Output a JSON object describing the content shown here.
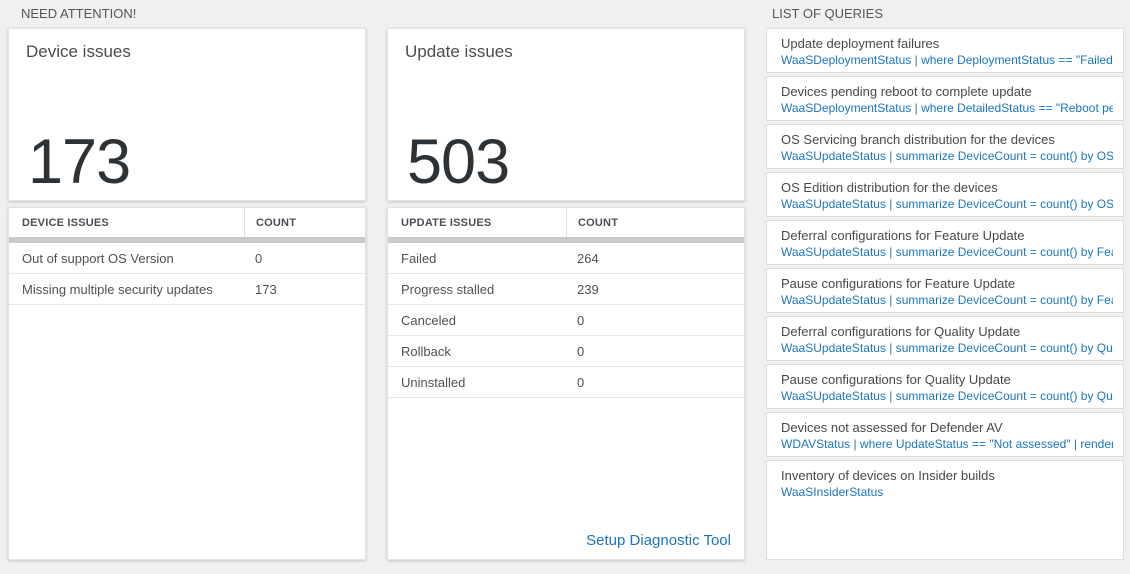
{
  "colors": {
    "page_bg": "#f0f0f1",
    "link_blue": "#1c75bc",
    "big_number_text": "#2d3237",
    "scrollbar_gray": "#c8c9cc"
  },
  "section_headers": {
    "need_attention": "NEED ATTENTION!",
    "list_of_queries": "LIST OF QUERIES"
  },
  "device_card": {
    "title": "Device issues",
    "big_number": "173",
    "table": {
      "headers": [
        "DEVICE ISSUES",
        "COUNT"
      ],
      "rows": [
        {
          "label": "Out of support OS Version",
          "count": "0"
        },
        {
          "label": "Missing multiple security updates",
          "count": "173"
        }
      ]
    }
  },
  "update_card": {
    "title": "Update issues",
    "big_number": "503",
    "table": {
      "headers": [
        "UPDATE ISSUES",
        "COUNT"
      ],
      "rows": [
        {
          "label": "Failed",
          "count": "264"
        },
        {
          "label": "Progress stalled",
          "count": "239"
        },
        {
          "label": "Canceled",
          "count": "0"
        },
        {
          "label": "Rollback",
          "count": "0"
        },
        {
          "label": "Uninstalled",
          "count": "0"
        }
      ]
    },
    "footer_link": "Setup Diagnostic Tool"
  },
  "query_list": [
    {
      "title": "Update deployment failures",
      "query": "WaaSDeploymentStatus | where DeploymentStatus == \"Failed\" |..."
    },
    {
      "title": "Devices pending reboot to complete update",
      "query": "WaaSDeploymentStatus | where DetailedStatus == \"Reboot pend..."
    },
    {
      "title": "OS Servicing branch distribution for the devices",
      "query": "WaaSUpdateStatus | summarize DeviceCount = count() by OSSer..."
    },
    {
      "title": "OS Edition distribution for the devices",
      "query": "WaaSUpdateStatus | summarize DeviceCount = count() by OSEdit..."
    },
    {
      "title": "Deferral configurations for Feature Update",
      "query": "WaaSUpdateStatus | summarize DeviceCount = count() by Featur..."
    },
    {
      "title": "Pause configurations for Feature Update",
      "query": "WaaSUpdateStatus | summarize DeviceCount = count() by Featur..."
    },
    {
      "title": "Deferral configurations for Quality Update",
      "query": "WaaSUpdateStatus | summarize DeviceCount = count() by Qualit..."
    },
    {
      "title": "Pause configurations for Quality Update",
      "query": "WaaSUpdateStatus | summarize DeviceCount = count() by Qualit..."
    },
    {
      "title": "Devices not assessed for Defender AV",
      "query": "WDAVStatus | where UpdateStatus == \"Not assessed\" | render ta..."
    },
    {
      "title": "Inventory of devices on Insider builds",
      "query": "WaaSInsiderStatus"
    }
  ]
}
